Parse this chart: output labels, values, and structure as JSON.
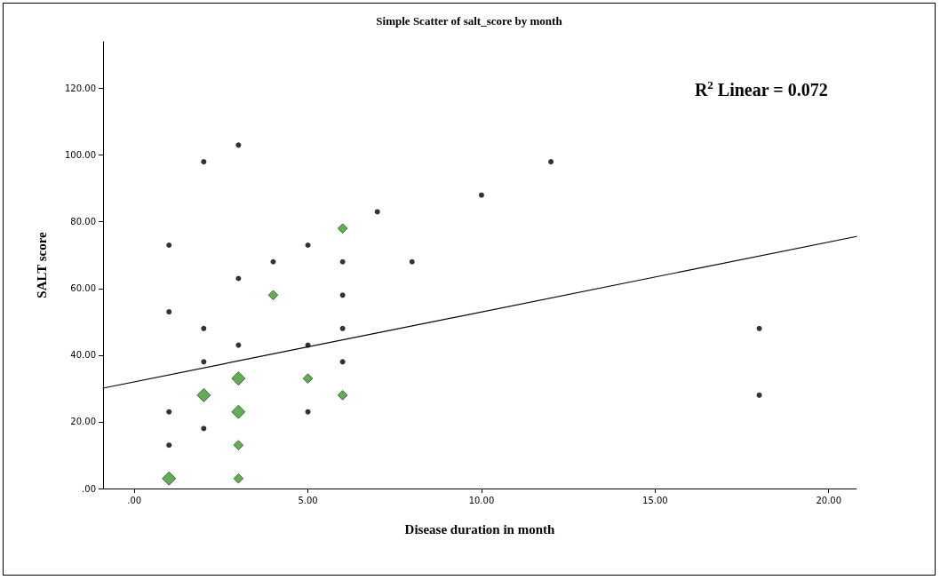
{
  "chart_data": {
    "type": "scatter",
    "title": "Simple Scatter of salt_score by month",
    "xlabel": "Disease duration in month",
    "ylabel": "SALT score",
    "annotations": [
      "R$^{2}$ Linear = 0.072"
    ],
    "xlim": [
      -0.9,
      20.8
    ],
    "ylim": [
      0,
      134
    ],
    "xticks": [
      {
        "value": 0,
        "label": ".00"
      },
      {
        "value": 5,
        "label": "5.00"
      },
      {
        "value": 10,
        "label": "10.00"
      },
      {
        "value": 15,
        "label": "15.00"
      },
      {
        "value": 20,
        "label": "20.00"
      }
    ],
    "yticks": [
      {
        "value": 0,
        "label": ".00"
      },
      {
        "value": 20,
        "label": "20.00"
      },
      {
        "value": 40,
        "label": "40.00"
      },
      {
        "value": 60,
        "label": "60.00"
      },
      {
        "value": 80,
        "label": "80.00"
      },
      {
        "value": 100,
        "label": "100.00"
      },
      {
        "value": 120,
        "label": "120.00"
      }
    ],
    "grid": false,
    "series": [
      {
        "marker": "circle",
        "color": "#000000",
        "x": [
          1,
          1,
          1,
          1,
          2,
          2,
          2,
          2,
          3,
          3,
          3,
          4,
          5,
          5,
          5,
          6,
          6,
          6,
          6,
          7,
          8,
          10,
          12,
          18,
          18
        ],
        "values": [
          73,
          53,
          23,
          13,
          98,
          48,
          38,
          18,
          103,
          63,
          43,
          68,
          73,
          43,
          23,
          68,
          58,
          48,
          38,
          83,
          68,
          88,
          98,
          48,
          28
        ]
      },
      {
        "type": "bubble",
        "marker": "diamond",
        "color": "#3a9a2a",
        "x": [
          1,
          2,
          3,
          3,
          3,
          3,
          4,
          5,
          6,
          6
        ],
        "values": [
          3,
          28,
          33,
          23,
          13,
          3,
          58,
          33,
          78,
          28
        ],
        "sizes": [
          1,
          1,
          1,
          1,
          0.5,
          0.5,
          0.5,
          0.5,
          0.5,
          0.5
        ]
      },
      {
        "type": "line",
        "marker": "none",
        "color": "#000000",
        "x": [
          -0.9,
          20.8
        ],
        "values": [
          30.1,
          75.6
        ]
      }
    ]
  }
}
